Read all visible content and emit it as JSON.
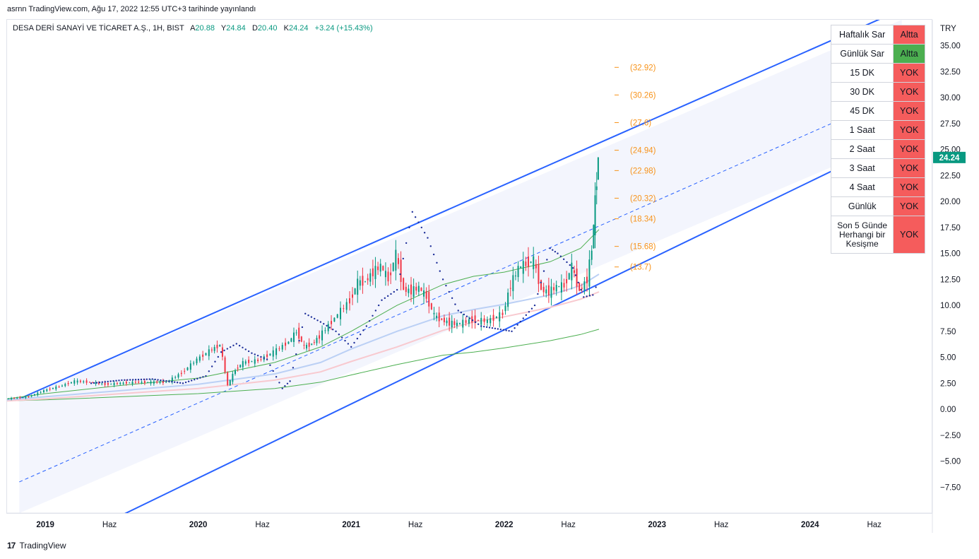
{
  "header": {
    "published_text": "asrnn TradingView.com, Ağu 17, 2022 12:55 UTC+3 tarihinde yayınlandı"
  },
  "legend": {
    "symbol": "DESA DERİ SANAYİ VE TİCARET A.Ş., 1H, BIST",
    "open_label": "A",
    "open": "20.88",
    "high_label": "Y",
    "high": "24.84",
    "low_label": "D",
    "low": "20.40",
    "close_label": "K",
    "close": "24.24",
    "change": "+3.24 (+15.43%)"
  },
  "colors": {
    "up": "#089981",
    "down": "#f23645",
    "channel": "#2962ff",
    "fib": "#f7931a",
    "ma_green": "#4caf50",
    "ma_blue": "#bbd0f5",
    "ma_pink": "#f8c9cf",
    "psar": "#1e2f9a",
    "last_price_bg": "#089981",
    "table_red": "#f55c5c",
    "table_green": "#4caf50"
  },
  "signal_table": {
    "rows": [
      {
        "label": "Haftalık Sar",
        "value": "Altta",
        "color": "red"
      },
      {
        "label": "Günlük Sar",
        "value": "Altta",
        "color": "green"
      },
      {
        "label": "15 DK",
        "value": "YOK",
        "color": "red"
      },
      {
        "label": "30 DK",
        "value": "YOK",
        "color": "red"
      },
      {
        "label": "45 DK",
        "value": "YOK",
        "color": "red"
      },
      {
        "label": "1 Saat",
        "value": "YOK",
        "color": "red"
      },
      {
        "label": "2 Saat",
        "value": "YOK",
        "color": "red"
      },
      {
        "label": "3 Saat",
        "value": "YOK",
        "color": "red"
      },
      {
        "label": "4 Saat",
        "value": "YOK",
        "color": "red"
      },
      {
        "label": "Günlük",
        "value": "YOK",
        "color": "red"
      },
      {
        "label": "Son 5 Günde Herhangi bir Kesişme",
        "value": "YOK",
        "color": "red"
      }
    ]
  },
  "chart_data": {
    "type": "line",
    "currency": "TRY",
    "last_price": "24.24",
    "ylim": [
      -10,
      37.5
    ],
    "xlim": [
      2018.75,
      2024.8
    ],
    "y_ticks": [
      "35.00",
      "32.50",
      "30.00",
      "27.50",
      "25.00",
      "22.50",
      "20.00",
      "17.50",
      "15.00",
      "12.50",
      "10.00",
      "7.50",
      "5.00",
      "2.50",
      "0.00",
      "−2.50",
      "−5.00",
      "−7.50"
    ],
    "y_tick_values": [
      35,
      32.5,
      30,
      27.5,
      25,
      22.5,
      20,
      17.5,
      15,
      12.5,
      10,
      7.5,
      5,
      2.5,
      0,
      -2.5,
      -5,
      -7.5
    ],
    "x_ticks": [
      {
        "label": "2019",
        "x": 2019.0
      },
      {
        "label": "Haz",
        "x": 2019.42
      },
      {
        "label": "2020",
        "x": 2020.0
      },
      {
        "label": "Haz",
        "x": 2020.42
      },
      {
        "label": "2021",
        "x": 2021.0
      },
      {
        "label": "Haz",
        "x": 2021.42
      },
      {
        "label": "2022",
        "x": 2022.0
      },
      {
        "label": "Haz",
        "x": 2022.42
      },
      {
        "label": "2023",
        "x": 2023.0
      },
      {
        "label": "Haz",
        "x": 2023.42
      },
      {
        "label": "2024",
        "x": 2024.0
      },
      {
        "label": "Haz",
        "x": 2024.42
      }
    ],
    "fib_levels": [
      {
        "label": "(32.92)",
        "value": 32.92
      },
      {
        "label": "(30.26)",
        "value": 30.26
      },
      {
        "label": "(27.6)",
        "value": 27.6
      },
      {
        "label": "(24.94)",
        "value": 24.94
      },
      {
        "label": "(22.98)",
        "value": 22.98
      },
      {
        "label": "(20.32)",
        "value": 20.32
      },
      {
        "label": "(18.34)",
        "value": 18.34
      },
      {
        "label": "(15.68)",
        "value": 15.68
      },
      {
        "label": "(13.7)",
        "value": 13.7
      }
    ],
    "channel": {
      "upper": [
        [
          2018.83,
          1.0
        ],
        [
          2024.6,
          38.5
        ]
      ],
      "middle": [
        [
          2018.83,
          -7.0
        ],
        [
          2024.6,
          30.5
        ]
      ],
      "lower": [
        [
          2019.5,
          -10.2
        ],
        [
          2024.6,
          26.2
        ]
      ]
    },
    "price": {
      "name": "",
      "x": [
        2018.75,
        2018.9,
        2019.0,
        2019.1,
        2019.2,
        2019.3,
        2019.4,
        2019.5,
        2019.6,
        2019.7,
        2019.8,
        2019.9,
        2020.0,
        2020.08,
        2020.15,
        2020.2,
        2020.25,
        2020.3,
        2020.4,
        2020.5,
        2020.6,
        2020.65,
        2020.7,
        2020.75,
        2020.8,
        2020.9,
        2021.0,
        2021.05,
        2021.1,
        2021.15,
        2021.2,
        2021.25,
        2021.3,
        2021.35,
        2021.4,
        2021.45,
        2021.5,
        2021.55,
        2021.6,
        2021.65,
        2021.7,
        2021.8,
        2021.9,
        2022.0,
        2022.05,
        2022.1,
        2022.15,
        2022.2,
        2022.25,
        2022.3,
        2022.35,
        2022.4,
        2022.45,
        2022.5,
        2022.55,
        2022.58,
        2022.6,
        2022.62
      ],
      "values": [
        1.0,
        1.2,
        1.8,
        2.2,
        2.7,
        2.6,
        2.4,
        2.5,
        2.6,
        2.6,
        2.6,
        3.5,
        4.8,
        5.6,
        6.2,
        2.3,
        3.8,
        4.5,
        4.7,
        5.5,
        6.5,
        7.5,
        6.0,
        6.3,
        7.0,
        8.8,
        10.5,
        12.2,
        12.3,
        13.2,
        13.8,
        12.5,
        14.9,
        11.5,
        11.4,
        11.7,
        10.8,
        9.0,
        8.6,
        8.3,
        8.2,
        8.6,
        8.5,
        9.2,
        12.0,
        13.6,
        14.0,
        14.3,
        11.5,
        11.3,
        11.8,
        11.9,
        13.7,
        11.4,
        12.5,
        15.5,
        20.0,
        24.24
      ]
    },
    "ma_green_fast": {
      "x": [
        2018.75,
        2019.0,
        2019.5,
        2020.0,
        2020.5,
        2020.8,
        2021.0,
        2021.3,
        2021.6,
        2021.8,
        2022.0,
        2022.3,
        2022.5,
        2022.62
      ],
      "values": [
        1.0,
        1.5,
        2.3,
        3.0,
        4.5,
        6.0,
        7.5,
        10.0,
        12.0,
        12.8,
        13.2,
        14.2,
        15.5,
        17.3
      ]
    },
    "ma_blue": {
      "x": [
        2018.75,
        2019.0,
        2019.5,
        2020.0,
        2020.5,
        2020.8,
        2021.0,
        2021.3,
        2021.6,
        2021.8,
        2022.0,
        2022.3,
        2022.5,
        2022.62
      ],
      "values": [
        0.9,
        1.2,
        1.8,
        2.4,
        3.4,
        4.5,
        5.8,
        7.5,
        9.0,
        9.6,
        10.1,
        11.0,
        11.9,
        13.0
      ]
    },
    "ma_pink": {
      "x": [
        2018.75,
        2019.0,
        2019.5,
        2020.0,
        2020.5,
        2020.8,
        2021.0,
        2021.3,
        2021.6,
        2021.8,
        2022.0,
        2022.3,
        2022.5,
        2022.62
      ],
      "values": [
        0.8,
        1.0,
        1.5,
        2.0,
        2.8,
        3.6,
        4.6,
        6.0,
        7.6,
        8.4,
        8.9,
        9.8,
        10.6,
        11.3
      ]
    },
    "ma_green_slow": {
      "x": [
        2018.75,
        2019.0,
        2019.5,
        2020.0,
        2020.5,
        2020.8,
        2021.0,
        2021.3,
        2021.6,
        2021.8,
        2022.0,
        2022.3,
        2022.5,
        2022.62
      ],
      "values": [
        0.8,
        0.9,
        1.2,
        1.5,
        2.0,
        2.6,
        3.3,
        4.3,
        5.2,
        5.5,
        5.9,
        6.6,
        7.2,
        7.7
      ]
    },
    "psar": {
      "x": [
        2019.3,
        2019.5,
        2019.7,
        2019.9,
        2020.05,
        2020.15,
        2020.25,
        2020.35,
        2020.45,
        2020.55,
        2020.6,
        2020.7,
        2020.8,
        2020.9,
        2021.0,
        2021.1,
        2021.2,
        2021.3,
        2021.4,
        2021.5,
        2021.6,
        2021.7,
        2021.85,
        2022.05,
        2022.2,
        2022.3,
        2022.35,
        2022.45,
        2022.52,
        2022.58,
        2022.62
      ],
      "values": [
        2.5,
        2.8,
        2.9,
        2.5,
        3.2,
        5.5,
        6.3,
        5.4,
        4.8,
        2.0,
        2.7,
        9.2,
        8.4,
        7.5,
        6.0,
        8.0,
        10.5,
        11.5,
        19.0,
        16.5,
        12.5,
        9.5,
        8.0,
        7.5,
        10.0,
        15.5,
        15.0,
        13.6,
        10.8,
        11.0,
        12.5
      ]
    }
  },
  "footer": {
    "brand_mark": "17",
    "brand": "TradingView"
  }
}
